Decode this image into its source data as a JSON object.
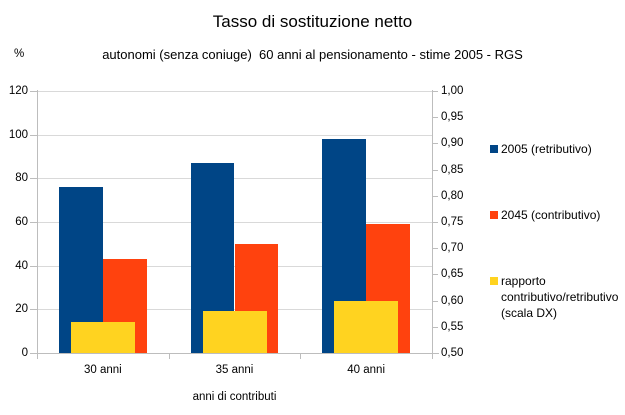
{
  "chart_data": {
    "type": "bar",
    "title": "Tasso di sostituzione netto",
    "subtitle": "autonomi (senza coniuge)  60 anni al pensionamento - stime 2005 - RGS",
    "xlabel": "anni di contributi",
    "categories": [
      "30 anni",
      "35 anni",
      "40 anni"
    ],
    "series": [
      {
        "name": "2005 (retributivo)",
        "axis": "left",
        "color": "#004586",
        "values": [
          76,
          87,
          98
        ]
      },
      {
        "name": "2045 (contributivo)",
        "axis": "left",
        "color": "#FF420E",
        "values": [
          43,
          50,
          59
        ]
      },
      {
        "name": "rapporto contributivo/retributivo (scala DX)",
        "axis": "right",
        "color": "#FFD320",
        "values": [
          0.56,
          0.58,
          0.6
        ]
      }
    ],
    "left_axis": {
      "label": "%",
      "min": 0,
      "max": 120,
      "tick_step": 20,
      "ticks": [
        "0",
        "20",
        "40",
        "60",
        "80",
        "100",
        "120"
      ]
    },
    "right_axis": {
      "label": "scala DX",
      "min": 0.5,
      "max": 1.0,
      "tick_step": 0.05,
      "ticks": [
        "0,50",
        "0,55",
        "0,60",
        "0,65",
        "0,70",
        "0,75",
        "0,80",
        "0,85",
        "0,90",
        "0,95",
        "1,00"
      ]
    },
    "grid": "horizontal",
    "legend_position": "right",
    "colors": {
      "gridline": "#d9d9d9",
      "axis": "#bdbdbd",
      "text": "#000000",
      "background": "#ffffff"
    }
  },
  "legend": {
    "items": [
      {
        "label": "2005 (retributivo)",
        "color": "#004586"
      },
      {
        "label": "2045 (contributivo)",
        "color": "#FF420E"
      },
      {
        "label": "rapporto\ncontributivo/retributivo\n(scala DX)",
        "color": "#FFD320"
      }
    ]
  }
}
